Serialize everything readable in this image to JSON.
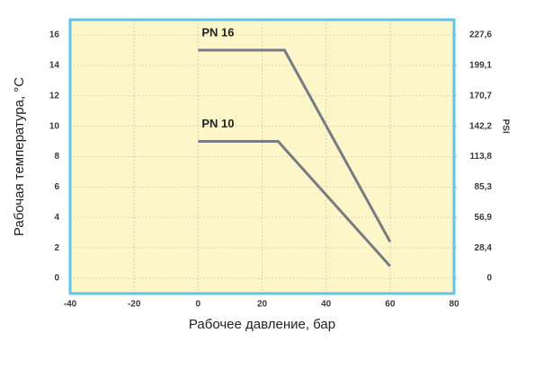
{
  "chart_data": {
    "type": "line",
    "x_label": "Рабочее давление, бар",
    "y_label": "Рабочая температура, °С",
    "y2_label": "PSI",
    "xlim": [
      -40,
      80
    ],
    "xticks": [
      -40,
      -20,
      0,
      20,
      40,
      60,
      80
    ],
    "ylim": [
      -1,
      17
    ],
    "yticks": [
      0,
      2,
      4,
      6,
      8,
      10,
      12,
      14,
      16
    ],
    "y2lim": [
      -14.2,
      241.8
    ],
    "y2ticks": [
      0,
      {
        "value": 28.4,
        "label": "28,4"
      },
      {
        "value": 56.9,
        "label": "56,9"
      },
      {
        "value": 85.3,
        "label": "85,3"
      },
      {
        "value": 113.8,
        "label": "113,8"
      },
      {
        "value": 142.2,
        "label": "142,2"
      },
      {
        "value": 170.7,
        "label": "170,7"
      },
      {
        "value": 199.1,
        "label": "199,1"
      },
      {
        "value": 227.6,
        "label": "227,6"
      }
    ],
    "grid": true,
    "background": "#fdf6c8",
    "border_color": "#5ec6e6",
    "series": [
      {
        "name": "PN 16",
        "color": "#777c84",
        "x": [
          0,
          27,
          60
        ],
        "values": [
          15,
          15,
          2.4
        ]
      },
      {
        "name": "PN 10",
        "color": "#777c84",
        "x": [
          0,
          25,
          60
        ],
        "values": [
          9,
          9,
          0.8
        ]
      }
    ]
  }
}
